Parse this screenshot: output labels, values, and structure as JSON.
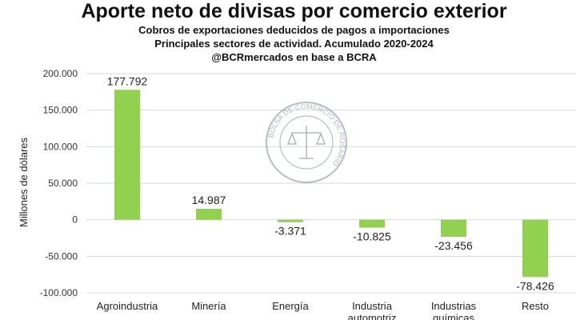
{
  "chart_data": {
    "type": "bar",
    "title": "Aporte neto de divisas por comercio exterior",
    "subtitle_lines": [
      "Cobros de exportaciones deducidos de pagos a importaciones",
      "Principales sectores de actividad. Acumulado 2020-2024",
      "@BCRmercados en base a BCRA"
    ],
    "xlabel": "",
    "ylabel": "Millones de dólares",
    "categories": [
      [
        "Agroindustria"
      ],
      [
        "Minería"
      ],
      [
        "Energía"
      ],
      [
        "Industria",
        "automotriz"
      ],
      [
        "Industrias",
        "químicas"
      ],
      [
        "Resto"
      ]
    ],
    "values": [
      177792,
      14987,
      -3371,
      -10825,
      -23456,
      -78426
    ],
    "data_labels": [
      "177.792",
      "14.987",
      "-3.371",
      "-10.825",
      "-23.456",
      "-78.426"
    ],
    "ylim": [
      -100000,
      200000
    ],
    "yticks": [
      200000,
      150000,
      100000,
      50000,
      0,
      -50000,
      -100000
    ],
    "ytick_labels": [
      "200.000",
      "150.000",
      "100.000",
      "50.000",
      "0",
      "-50.000",
      "-100.000"
    ],
    "grid": true,
    "bar_color": "#92d050",
    "grid_color": "#d9d9d9"
  },
  "watermark_text": "BOLSA DE COMERCIO DE ROSARIO"
}
